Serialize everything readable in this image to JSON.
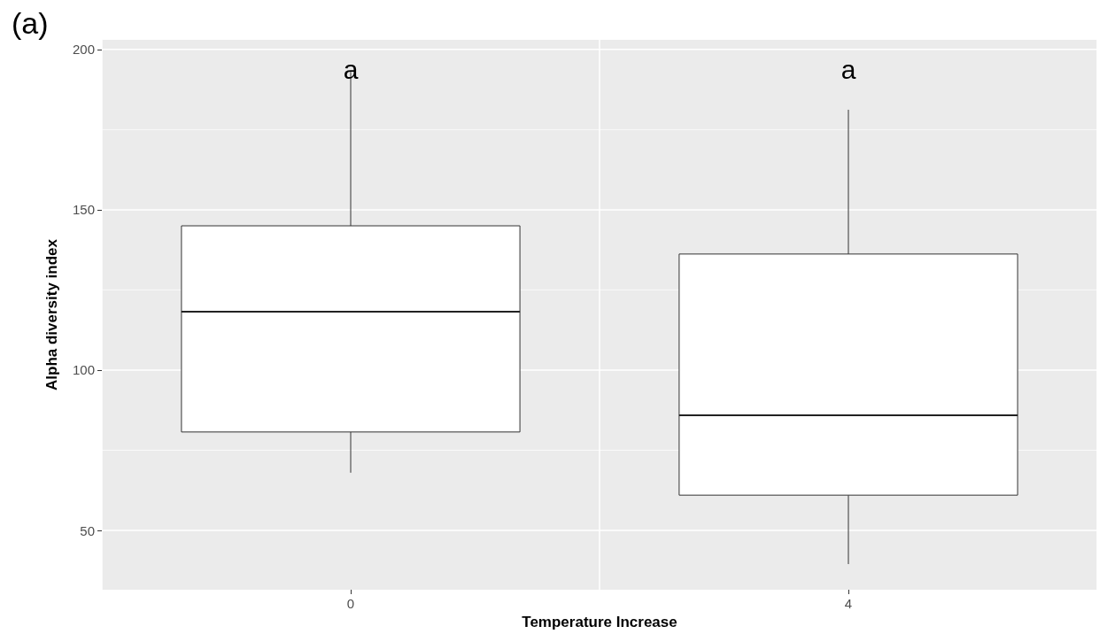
{
  "chart_data": {
    "type": "box",
    "title": "(a)",
    "xlabel": "Temperature Increase",
    "ylabel": "Alpha diversity index",
    "categories": [
      "0",
      "4"
    ],
    "boxes": [
      {
        "low": 68,
        "q1": 80.7,
        "median": 118.2,
        "q3": 145,
        "high": 193
      },
      {
        "low": 39.5,
        "q1": 61,
        "median": 85.9,
        "q3": 136.2,
        "high": 181.2
      }
    ],
    "ylim": [
      31.5,
      203
    ],
    "yticks": [
      50,
      100,
      150,
      200
    ],
    "grid": true,
    "annotations": [
      "a",
      "a"
    ]
  }
}
